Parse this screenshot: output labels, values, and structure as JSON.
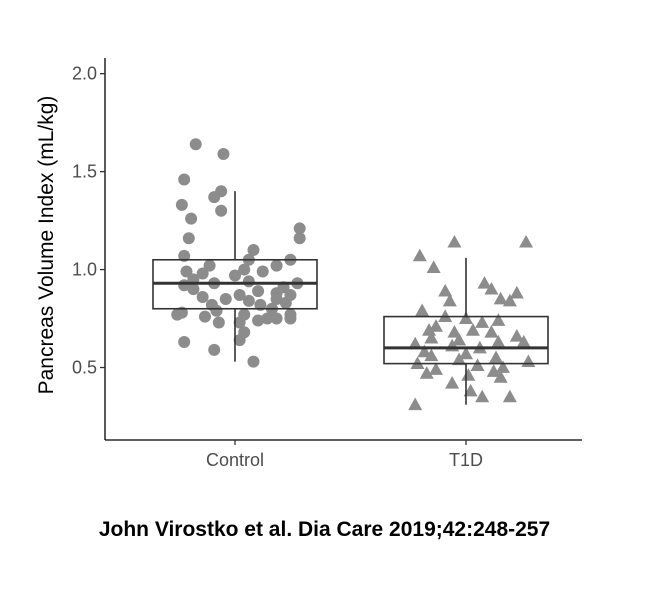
{
  "chart_data": {
    "type": "box",
    "title": "",
    "xlabel": "",
    "ylabel": "Pancreas Volume Index (mL/kg)",
    "ylim": [
      0.13,
      2.08
    ],
    "yticks": [
      0.5,
      1.0,
      1.5,
      2.0
    ],
    "ytick_labels": [
      "0.5",
      "1.0",
      "1.5",
      "2.0"
    ],
    "categories": [
      "Control",
      "T1D"
    ],
    "grid": false,
    "legend": "none",
    "point_color": "#8c8c8c",
    "box_color": "#333333",
    "series": [
      {
        "name": "Control",
        "marker": "circle",
        "box": {
          "whisker_low": 0.53,
          "q1": 0.8,
          "median": 0.93,
          "q3": 1.05,
          "whisker_high": 1.4
        },
        "points": [
          {
            "x": -0.17,
            "y": 1.64
          },
          {
            "x": -0.05,
            "y": 1.59
          },
          {
            "x": -0.22,
            "y": 1.46
          },
          {
            "x": -0.06,
            "y": 1.4
          },
          {
            "x": -0.09,
            "y": 1.37
          },
          {
            "x": -0.23,
            "y": 1.33
          },
          {
            "x": -0.06,
            "y": 1.3
          },
          {
            "x": -0.19,
            "y": 1.26
          },
          {
            "x": 0.28,
            "y": 1.21
          },
          {
            "x": 0.28,
            "y": 1.16
          },
          {
            "x": -0.2,
            "y": 1.16
          },
          {
            "x": 0.08,
            "y": 1.1
          },
          {
            "x": -0.22,
            "y": 1.07
          },
          {
            "x": 0.06,
            "y": 1.05
          },
          {
            "x": 0.24,
            "y": 1.05
          },
          {
            "x": 0.18,
            "y": 1.02
          },
          {
            "x": -0.11,
            "y": 1.02
          },
          {
            "x": 0.04,
            "y": 1.0
          },
          {
            "x": 0.12,
            "y": 0.99
          },
          {
            "x": -0.21,
            "y": 0.99
          },
          {
            "x": -0.14,
            "y": 0.98
          },
          {
            "x": 0.0,
            "y": 0.97
          },
          {
            "x": -0.18,
            "y": 0.95
          },
          {
            "x": 0.06,
            "y": 0.94
          },
          {
            "x": -0.09,
            "y": 0.93
          },
          {
            "x": 0.27,
            "y": 0.93
          },
          {
            "x": -0.22,
            "y": 0.92
          },
          {
            "x": 0.21,
            "y": 0.91
          },
          {
            "x": -0.18,
            "y": 0.9
          },
          {
            "x": 0.1,
            "y": 0.89
          },
          {
            "x": 0.18,
            "y": 0.88
          },
          {
            "x": 0.02,
            "y": 0.87
          },
          {
            "x": 0.24,
            "y": 0.87
          },
          {
            "x": -0.14,
            "y": 0.86
          },
          {
            "x": -0.04,
            "y": 0.85
          },
          {
            "x": 0.18,
            "y": 0.85
          },
          {
            "x": 0.06,
            "y": 0.84
          },
          {
            "x": 0.22,
            "y": 0.83
          },
          {
            "x": -0.1,
            "y": 0.82
          },
          {
            "x": 0.11,
            "y": 0.82
          },
          {
            "x": 0.16,
            "y": 0.8
          },
          {
            "x": -0.08,
            "y": 0.79
          },
          {
            "x": -0.23,
            "y": 0.78
          },
          {
            "x": 0.04,
            "y": 0.77
          },
          {
            "x": 0.24,
            "y": 0.77
          },
          {
            "x": -0.25,
            "y": 0.77
          },
          {
            "x": -0.13,
            "y": 0.76
          },
          {
            "x": 0.14,
            "y": 0.75
          },
          {
            "x": 0.18,
            "y": 0.75
          },
          {
            "x": 0.24,
            "y": 0.75
          },
          {
            "x": 0.1,
            "y": 0.74
          },
          {
            "x": 0.02,
            "y": 0.73
          },
          {
            "x": -0.07,
            "y": 0.73
          },
          {
            "x": 0.04,
            "y": 0.68
          },
          {
            "x": 0.02,
            "y": 0.64
          },
          {
            "x": -0.22,
            "y": 0.63
          },
          {
            "x": -0.09,
            "y": 0.59
          },
          {
            "x": 0.08,
            "y": 0.53
          }
        ]
      },
      {
        "name": "T1D",
        "marker": "triangle",
        "box": {
          "whisker_low": 0.31,
          "q1": 0.52,
          "median": 0.6,
          "q3": 0.76,
          "whisker_high": 1.06
        },
        "points": [
          {
            "x": -0.05,
            "y": 1.14
          },
          {
            "x": 0.26,
            "y": 1.14
          },
          {
            "x": -0.2,
            "y": 1.07
          },
          {
            "x": -0.14,
            "y": 1.01
          },
          {
            "x": 0.08,
            "y": 0.93
          },
          {
            "x": 0.11,
            "y": 0.9
          },
          {
            "x": -0.09,
            "y": 0.89
          },
          {
            "x": 0.22,
            "y": 0.88
          },
          {
            "x": 0.15,
            "y": 0.85
          },
          {
            "x": 0.19,
            "y": 0.84
          },
          {
            "x": -0.07,
            "y": 0.84
          },
          {
            "x": -0.19,
            "y": 0.79
          },
          {
            "x": -0.09,
            "y": 0.76
          },
          {
            "x": 0.0,
            "y": 0.75
          },
          {
            "x": 0.14,
            "y": 0.74
          },
          {
            "x": 0.07,
            "y": 0.73
          },
          {
            "x": -0.13,
            "y": 0.71
          },
          {
            "x": -0.16,
            "y": 0.69
          },
          {
            "x": 0.03,
            "y": 0.69
          },
          {
            "x": 0.11,
            "y": 0.68
          },
          {
            "x": -0.05,
            "y": 0.68
          },
          {
            "x": 0.22,
            "y": 0.66
          },
          {
            "x": -0.15,
            "y": 0.65
          },
          {
            "x": -0.03,
            "y": 0.64
          },
          {
            "x": 0.14,
            "y": 0.63
          },
          {
            "x": 0.25,
            "y": 0.63
          },
          {
            "x": -0.22,
            "y": 0.62
          },
          {
            "x": -0.06,
            "y": 0.61
          },
          {
            "x": 0.06,
            "y": 0.6
          },
          {
            "x": -0.18,
            "y": 0.58
          },
          {
            "x": 0.0,
            "y": 0.57
          },
          {
            "x": -0.15,
            "y": 0.56
          },
          {
            "x": 0.13,
            "y": 0.55
          },
          {
            "x": -0.03,
            "y": 0.54
          },
          {
            "x": 0.27,
            "y": 0.53
          },
          {
            "x": -0.21,
            "y": 0.52
          },
          {
            "x": 0.05,
            "y": 0.51
          },
          {
            "x": 0.16,
            "y": 0.5
          },
          {
            "x": -0.13,
            "y": 0.49
          },
          {
            "x": 0.12,
            "y": 0.48
          },
          {
            "x": -0.17,
            "y": 0.47
          },
          {
            "x": 0.01,
            "y": 0.46
          },
          {
            "x": 0.15,
            "y": 0.45
          },
          {
            "x": -0.06,
            "y": 0.42
          },
          {
            "x": 0.02,
            "y": 0.38
          },
          {
            "x": 0.19,
            "y": 0.35
          },
          {
            "x": 0.07,
            "y": 0.35
          },
          {
            "x": -0.22,
            "y": 0.31
          }
        ]
      }
    ]
  },
  "citation": "John Virostko et al. Dia Care 2019;42:248-257"
}
